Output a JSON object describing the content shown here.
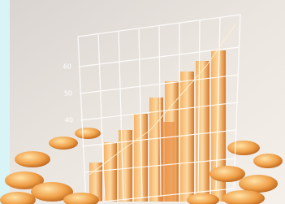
{
  "image": {
    "axis_labels": [
      "60",
      "50",
      "40"
    ]
  }
}
